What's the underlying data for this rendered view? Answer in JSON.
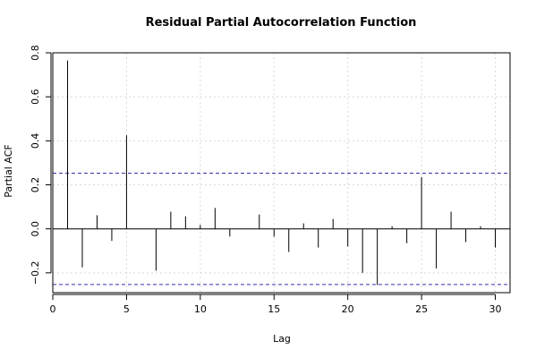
{
  "chart_data": {
    "type": "bar",
    "title": "Residual Partial Autocorrelation Function",
    "xlabel": "Lag",
    "ylabel": "Partial ACF",
    "xlim": [
      0,
      31
    ],
    "ylim": [
      -0.29,
      0.8
    ],
    "xticks": [
      0,
      5,
      10,
      15,
      20,
      25,
      30
    ],
    "xtick_labels": [
      "0",
      "5",
      "10",
      "15",
      "20",
      "25",
      "30"
    ],
    "yticks": [
      -0.2,
      0.0,
      0.2,
      0.4,
      0.6,
      0.8
    ],
    "ytick_labels": [
      "−0.2",
      "0.0",
      "0.2",
      "0.4",
      "0.6",
      "0.8"
    ],
    "grid": true,
    "confidence_bound": 0.253,
    "confidence_color": "#3333aa",
    "series": [
      {
        "lags": [
          1,
          2,
          3,
          4,
          5,
          6,
          7,
          8,
          9,
          10,
          11,
          12,
          13,
          14,
          15,
          16,
          17,
          18,
          19,
          20,
          21,
          22,
          23,
          24,
          25,
          26,
          27,
          28,
          29,
          30
        ],
        "values": [
          0.765,
          -0.175,
          0.062,
          -0.055,
          0.425,
          0.0,
          -0.19,
          0.078,
          0.057,
          0.018,
          0.095,
          -0.035,
          0.0,
          0.065,
          -0.035,
          -0.105,
          0.025,
          -0.085,
          0.045,
          -0.08,
          -0.2,
          -0.255,
          0.012,
          -0.065,
          0.235,
          -0.18,
          0.078,
          -0.06,
          0.012,
          -0.085
        ]
      }
    ]
  }
}
